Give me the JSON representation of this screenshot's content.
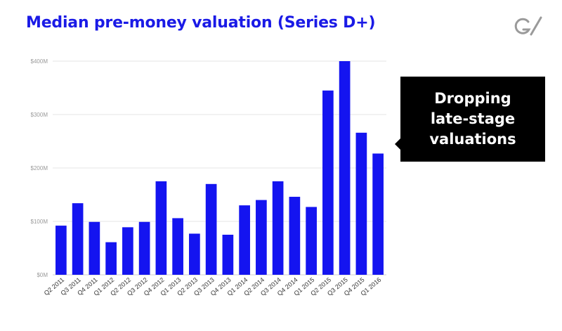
{
  "slide": {
    "title": "Median pre-money valuation (Series D+)",
    "logo_icon": "gv-logo-icon"
  },
  "callout": {
    "lines": [
      "Dropping",
      "late-stage",
      "valuations"
    ]
  },
  "colors": {
    "accent": "#1a1ae6",
    "bar": "#1414f0",
    "callout_bg": "#000000",
    "grid": "#e6e6e6",
    "tick_text": "#9a9a9a"
  },
  "chart_data": {
    "type": "bar",
    "categories": [
      "Q2 2011",
      "Q3 2011",
      "Q4 2011",
      "Q1 2012",
      "Q2 2012",
      "Q3 2012",
      "Q4 2012",
      "Q1 2013",
      "Q2 2013",
      "Q3 2013",
      "Q4 2013",
      "Q1 2014",
      "Q2 2014",
      "Q3 2014",
      "Q4 2014",
      "Q1 2015",
      "Q2 2015",
      "Q3 2015",
      "Q4 2015",
      "Q1 2016"
    ],
    "values": [
      92,
      134,
      99,
      61,
      89,
      99,
      175,
      106,
      77,
      170,
      75,
      130,
      140,
      175,
      146,
      127,
      345,
      400,
      266,
      227
    ],
    "ylim": [
      0,
      400
    ],
    "yticks": [
      0,
      100,
      200,
      300,
      400
    ],
    "ytick_labels": [
      "$0M",
      "$100M",
      "$200M",
      "$300M",
      "$400M"
    ],
    "grid": true,
    "xlabel": "",
    "ylabel": ""
  }
}
